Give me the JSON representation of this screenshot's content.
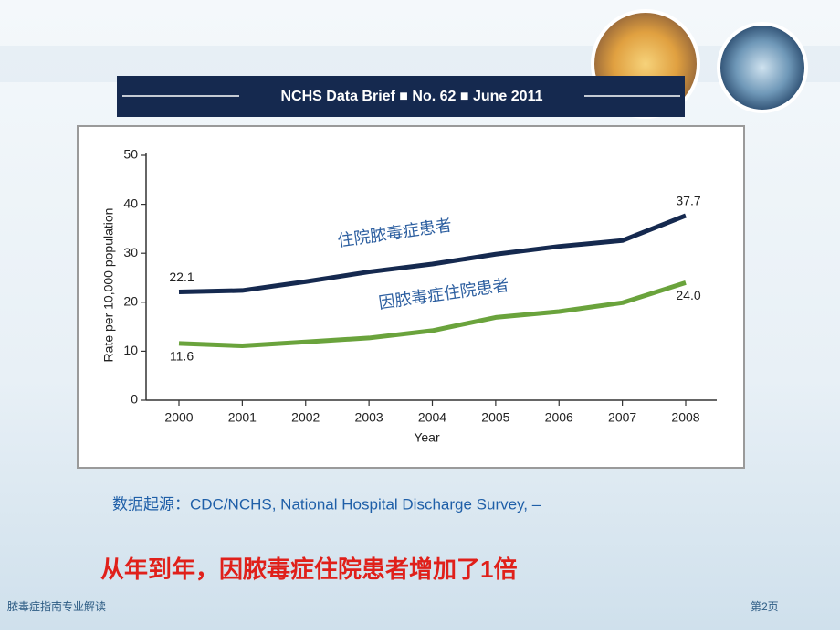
{
  "banner": "NCHS Data Brief ■ No. 62 ■ June 2011",
  "chart_data": {
    "type": "line",
    "x_label": "Year",
    "y_label": "Rate per 10,000 population",
    "categories": [
      "2000",
      "2001",
      "2002",
      "2003",
      "2004",
      "2005",
      "2006",
      "2007",
      "2008"
    ],
    "series": [
      {
        "name": "住院脓毒症患者",
        "color": "#15294f",
        "values": [
          22.1,
          22.4,
          24.2,
          26.2,
          27.8,
          29.8,
          31.4,
          32.6,
          37.7
        ],
        "value_labels": [
          "22.1",
          null,
          null,
          null,
          null,
          null,
          null,
          null,
          "37.7"
        ]
      },
      {
        "name": "因脓毒症住院患者",
        "color": "#6aa33c",
        "values": [
          11.6,
          11.1,
          11.9,
          12.7,
          14.2,
          16.9,
          18.1,
          19.9,
          24.0
        ],
        "value_labels": [
          "11.6",
          null,
          null,
          null,
          null,
          null,
          null,
          null,
          "24.0"
        ]
      }
    ],
    "ylim": [
      0,
      50
    ],
    "yticks": [
      0,
      10,
      20,
      30,
      40,
      50
    ]
  },
  "source": "数据起源：CDC/NCHS, National Hospital Discharge Survey, –",
  "headline": "从年到年，因脓毒症住院患者增加了1倍",
  "footer_left": "脓毒症指南专业解读",
  "footer_right": "第2页"
}
